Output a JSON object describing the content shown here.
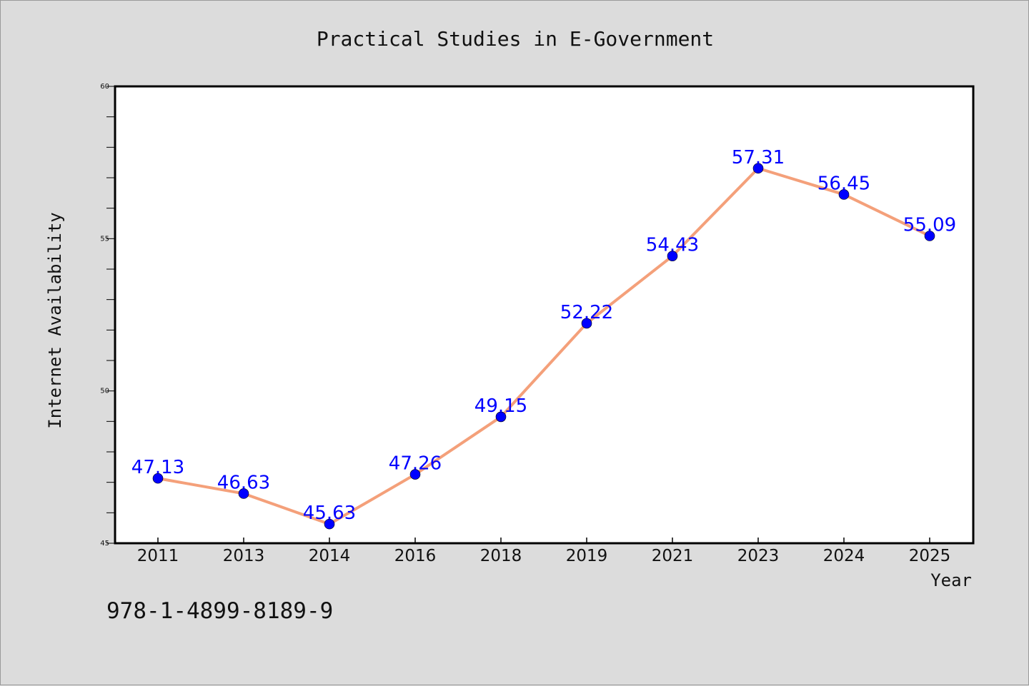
{
  "chart_data": {
    "type": "line",
    "title": "Practical Studies in E-Government",
    "xlabel": "Year",
    "ylabel": "Internet Availability",
    "categories": [
      "2011",
      "2013",
      "2014",
      "2016",
      "2018",
      "2019",
      "2021",
      "2023",
      "2024",
      "2025"
    ],
    "series": [
      {
        "values": [
          47.13,
          46.63,
          45.63,
          47.26,
          49.15,
          52.22,
          54.43,
          57.31,
          56.45,
          55.09
        ],
        "labels": [
          "47.13",
          "46.63",
          "45.63",
          "47.26",
          "49.15",
          "52.22",
          "54.43",
          "57.31",
          "56.45",
          "55.09"
        ],
        "line_color": "#f4a07a",
        "marker_color": "#0000ff",
        "label_color": "#0000ff"
      }
    ],
    "ylim": [
      45,
      60
    ],
    "yticks": [
      45,
      50,
      55,
      60
    ],
    "ytick_labels": [
      "45",
      "50",
      "55",
      "60"
    ],
    "grid": false,
    "legend": "none"
  },
  "annotation": "978-1-4899-8189-9",
  "colors": {
    "background": "#dcdcdc",
    "plot_area": "#ffffff",
    "axes": "#000000"
  }
}
